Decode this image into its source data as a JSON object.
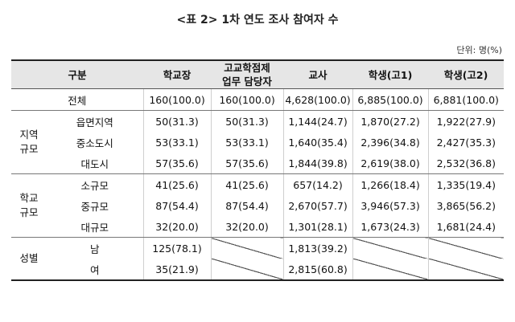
{
  "title": "<표 2> 1차 연도 조사 참여자 수",
  "unit": "단위: 명(%)",
  "headers": {
    "gubun": "구분",
    "principal": "학교장",
    "manager_line1": "고교학점제",
    "manager_line2": "업무 담당자",
    "teacher": "교사",
    "student1": "학생(고1)",
    "student2": "학생(고2)"
  },
  "total": {
    "label": "전체",
    "values": [
      "160(100.0)",
      "160(100.0)",
      "4,628(100.0)",
      "6,885(100.0)",
      "6,881(100.0)"
    ]
  },
  "groups": {
    "region": {
      "line1": "지역",
      "line2": "규모",
      "rows": [
        {
          "label": "읍면지역",
          "values": [
            "50(31.3)",
            "50(31.3)",
            "1,144(24.7)",
            "1,870(27.2)",
            "1,922(27.9)"
          ]
        },
        {
          "label": "중소도시",
          "values": [
            "53(33.1)",
            "53(33.1)",
            "1,640(35.4)",
            "2,396(34.8)",
            "2,427(35.3)"
          ]
        },
        {
          "label": "대도시",
          "values": [
            "57(35.6)",
            "57(35.6)",
            "1,844(39.8)",
            "2,619(38.0)",
            "2,532(36.8)"
          ]
        }
      ]
    },
    "school": {
      "line1": "학교",
      "line2": "규모",
      "rows": [
        {
          "label": "소규모",
          "values": [
            "41(25.6)",
            "41(25.6)",
            "657(14.2)",
            "1,266(18.4)",
            "1,335(19.4)"
          ]
        },
        {
          "label": "중규모",
          "values": [
            "87(54.4)",
            "87(54.4)",
            "2,670(57.7)",
            "3,946(57.3)",
            "3,865(56.2)"
          ]
        },
        {
          "label": "대규모",
          "values": [
            "32(20.0)",
            "32(20.0)",
            "1,301(28.1)",
            "1,673(24.3)",
            "1,681(24.4)"
          ]
        }
      ]
    },
    "gender": {
      "line1": "성별",
      "rows": [
        {
          "label": "남",
          "principal": "125(78.1)",
          "teacher": "1,813(39.2)"
        },
        {
          "label": "여",
          "principal": "35(21.9)",
          "teacher": "2,815(60.8)"
        }
      ]
    }
  }
}
